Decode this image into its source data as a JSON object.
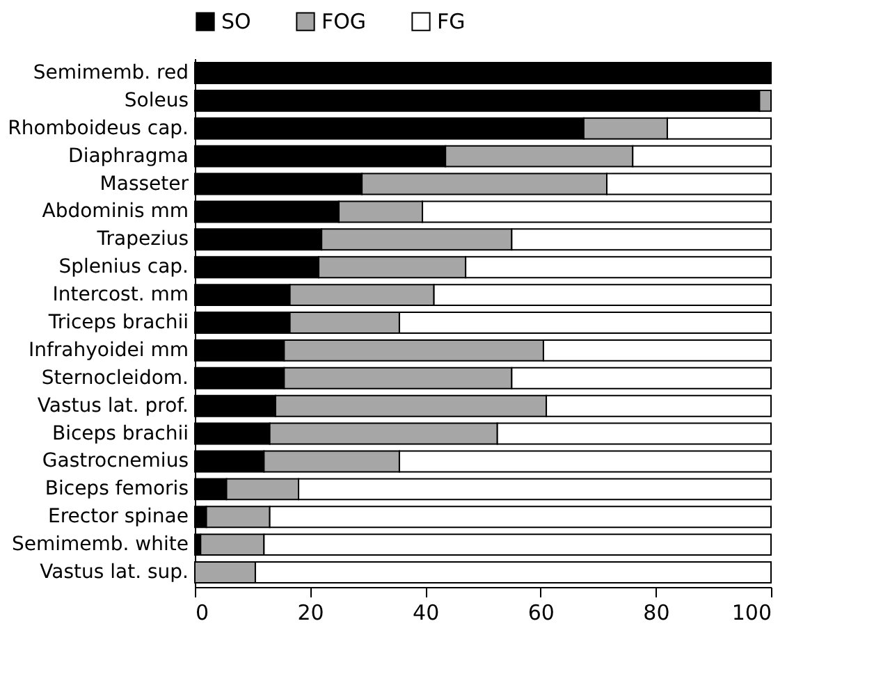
{
  "chart_data": {
    "type": "bar",
    "orientation": "horizontal",
    "stacked": true,
    "legend": "top",
    "grid": false,
    "categories": [
      "Semimemb. red",
      "Soleus",
      "Rhomboideus cap.",
      "Diaphragma",
      "Masseter",
      "Abdominis mm",
      "Trapezius",
      "Splenius cap.",
      "Intercost. mm",
      "Triceps brachii",
      "Infrahyoidei mm",
      "Sternocleidom.",
      "Vastus lat. prof.",
      "Biceps brachii",
      "Gastrocnemius",
      "Biceps femoris",
      "Erector spinae",
      "Semimemb. white",
      "Vastus lat. sup."
    ],
    "series": [
      {
        "name": "SO",
        "color": "#000000",
        "values": [
          100,
          98,
          67.5,
          43.5,
          29,
          25,
          22,
          21.5,
          16.5,
          16.5,
          15.5,
          15.5,
          14,
          13,
          12,
          5.5,
          2,
          1,
          0
        ]
      },
      {
        "name": "FOG",
        "color": "#a6a6a6",
        "values": [
          0,
          2,
          14.5,
          32.5,
          42.5,
          14.5,
          33,
          25.5,
          25,
          19,
          45,
          39.5,
          47,
          39.5,
          23.5,
          12.5,
          11,
          11,
          10.5
        ]
      },
      {
        "name": "FG",
        "color": "#ffffff",
        "values": [
          0,
          0,
          18,
          24,
          28.5,
          60.5,
          45,
          53,
          58.5,
          64.5,
          39.5,
          45,
          39,
          47.5,
          64.5,
          82,
          87,
          88,
          89.5
        ]
      }
    ],
    "xlim": [
      0,
      100
    ],
    "xticks": [
      0,
      20,
      40,
      60,
      80,
      100
    ]
  }
}
